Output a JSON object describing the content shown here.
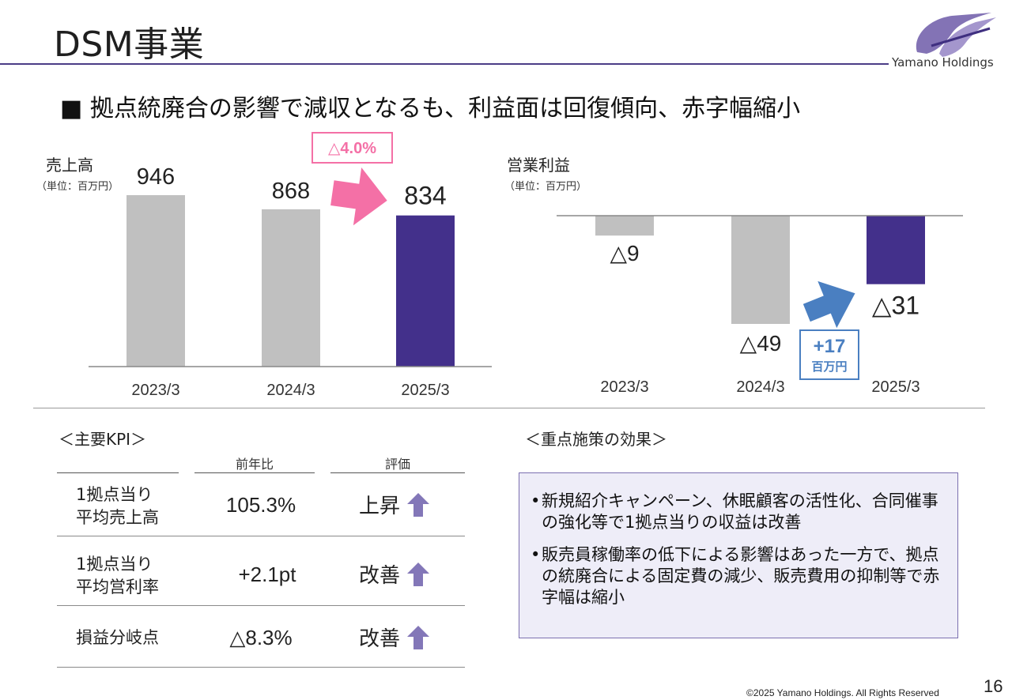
{
  "header": {
    "title": "DSM事業",
    "logo_text": "Yamano Holdings"
  },
  "subtitle": "■ 拠点統廃合の影響で減収となるも、利益面は回復傾向、赤字幅縮小",
  "colors": {
    "accent": "#43308b",
    "gray_bar": "#c0c0c0",
    "pink": "#f470a6",
    "blue": "#4a7fc1"
  },
  "chart_data": [
    {
      "type": "bar",
      "title": "売上高",
      "unit": "（単位：百万円）",
      "categories": [
        "2023/3",
        "2024/3",
        "2025/3"
      ],
      "values": [
        946,
        868,
        834
      ],
      "value_labels": [
        "946",
        "868",
        "834"
      ],
      "ylim": [
        0,
        946
      ],
      "highlight_last": true,
      "annotation": {
        "label": "△4.0%",
        "from": "2024/3",
        "to": "2025/3"
      }
    },
    {
      "type": "bar",
      "title": "営業利益",
      "unit": "（単位：百万円）",
      "categories": [
        "2023/3",
        "2024/3",
        "2025/3"
      ],
      "values": [
        -9,
        -49,
        -31
      ],
      "value_labels": [
        "△9",
        "△49",
        "△31"
      ],
      "ylim": [
        -49,
        0
      ],
      "highlight_last": true,
      "annotation": {
        "label": "+17",
        "sublabel": "百万円",
        "from": "2024/3",
        "to": "2025/3"
      }
    }
  ],
  "kpi": {
    "heading": "＜主要KPI＞",
    "columns": [
      "前年比",
      "評価"
    ],
    "rows": [
      {
        "label": "1拠点当り\n平均売上高",
        "yoy": "105.3%",
        "eval": "上昇"
      },
      {
        "label": "1拠点当り\n平均営利率",
        "yoy": "+2.1pt",
        "eval": "改善"
      },
      {
        "label": "損益分岐点",
        "yoy": "△8.3%",
        "eval": "改善"
      }
    ]
  },
  "effects": {
    "heading": "＜重点施策の効果＞",
    "bullet": "•",
    "items": [
      "新規紹介キャンペーン、休眠顧客の活性化、合同催事の強化等で1拠点当りの収益は改善",
      "販売員稼働率の低下による影響はあった一方で、拠点の統廃合による固定費の減少、販売費用の抑制等で赤字幅は縮小"
    ]
  },
  "footer": {
    "copyright": "©2025 Yamano Holdings. All Rights Reserved",
    "page": "16"
  }
}
